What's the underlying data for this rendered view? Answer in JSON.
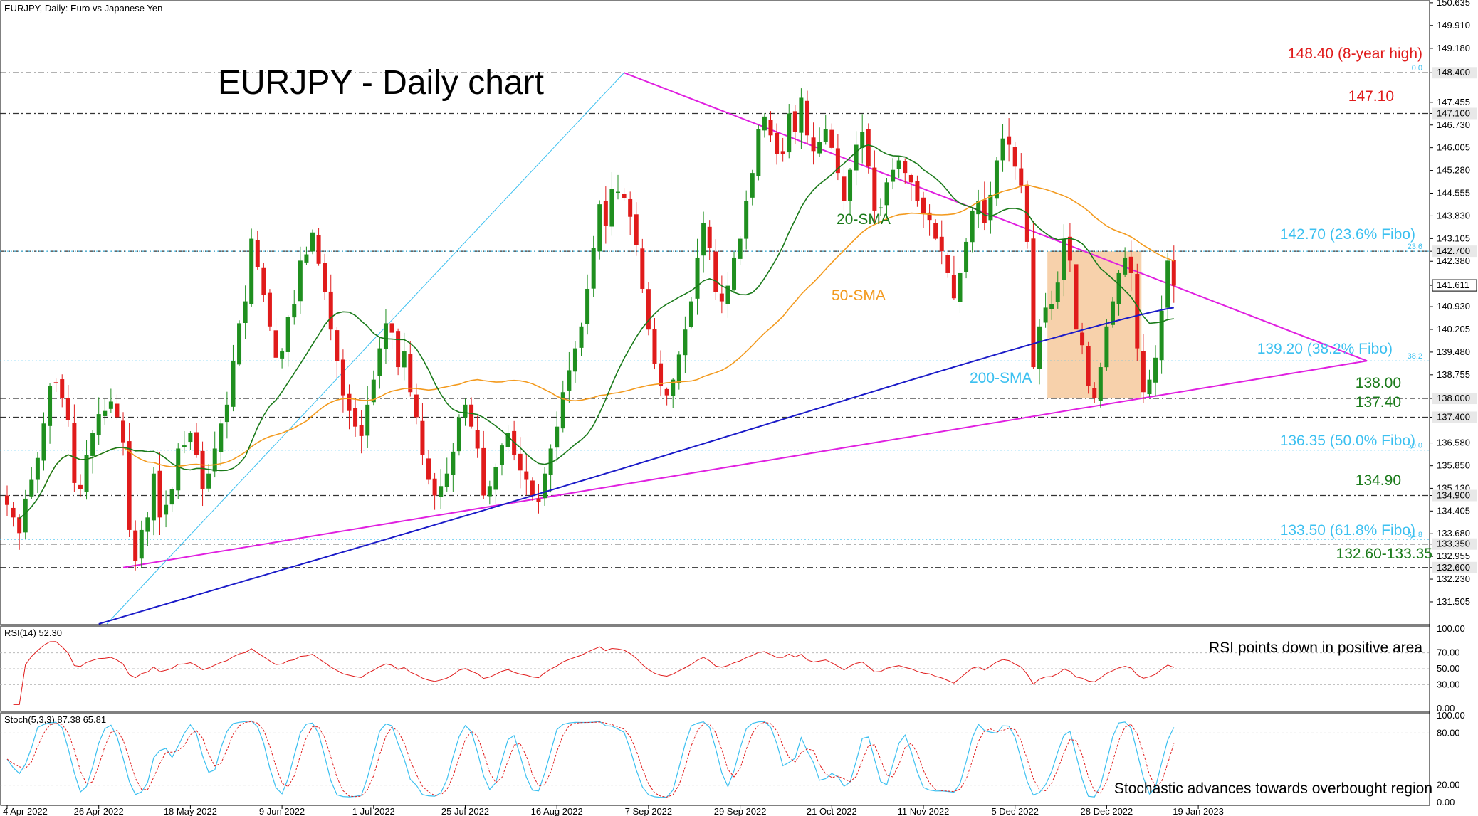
{
  "header": {
    "symbol_label": "EURJPY, Daily:  Euro vs Japanese Yen",
    "title": "EURJPY - Daily chart"
  },
  "colors": {
    "bull": "#1f8f1f",
    "bear": "#e01b1b",
    "sma20": "#1a7a1a",
    "sma50": "#f39a1e",
    "sma200": "#1a1ac8",
    "trendline": "#e020e0",
    "fibo": "#3cc0f0",
    "level": "#333333",
    "zone_fill": "#f6c99c",
    "rsi": "#e01b1b",
    "stoch_main": "#3cc0f0",
    "stoch_signal": "#e01b1b",
    "label_red": "#e01b1b",
    "label_blue": "#3cc0f0",
    "label_green": "#1a7a1a"
  },
  "chart_data": [
    {
      "type": "candlestick",
      "panel": "price",
      "ylim": [
        130.8,
        150.7
      ],
      "y_ticks": [
        "150.635",
        "149.910",
        "149.180",
        "148.400",
        "147.455",
        "147.100",
        "146.730",
        "146.005",
        "145.280",
        "144.555",
        "143.830",
        "143.105",
        "142.700",
        "142.380",
        "141.611",
        "140.930",
        "140.205",
        "139.480",
        "138.755",
        "138.000",
        "137.400",
        "136.580",
        "135.850",
        "135.130",
        "134.900",
        "134.405",
        "133.680",
        "133.350",
        "132.955",
        "132.600",
        "132.230",
        "131.505"
      ],
      "highlighted_ticks": [
        "148.400",
        "147.100",
        "142.700",
        "141.611",
        "138.000",
        "137.400",
        "134.900",
        "133.350",
        "132.600"
      ],
      "x_ticks": [
        "4 Apr 2022",
        "26 Apr 2022",
        "18 May 2022",
        "9 Jun 2022",
        "1 Jul 2022",
        "25 Jul 2022",
        "16 Aug 2022",
        "7 Sep 2022",
        "29 Sep 2022",
        "21 Oct 2022",
        "11 Nov 2022",
        "5 Dec 2022",
        "28 Dec 2022",
        "19 Jan 2023"
      ],
      "closes": [
        134.6,
        134.2,
        133.7,
        134.8,
        135.4,
        136.1,
        137.2,
        138.4,
        138.5,
        138.0,
        137.3,
        135.3,
        135.1,
        136.2,
        136.9,
        137.5,
        137.6,
        137.9,
        137.4,
        136.6,
        133.8,
        132.8,
        133.8,
        134.2,
        135.6,
        134.2,
        134.6,
        135.1,
        136.4,
        136.5,
        136.9,
        136.2,
        135.1,
        135.6,
        136.4,
        137.2,
        137.8,
        139.2,
        140.4,
        141.1,
        143.1,
        142.2,
        141.3,
        140.3,
        139.3,
        139.5,
        140.6,
        141.0,
        142.4,
        142.6,
        143.3,
        142.3,
        141.4,
        140.2,
        139.2,
        138.1,
        137.6,
        137.1,
        136.8,
        137.8,
        138.6,
        139.6,
        140.4,
        140.1,
        139.0,
        139.5,
        138.2,
        137.4,
        136.2,
        135.4,
        134.9,
        135.2,
        135.6,
        136.3,
        137.4,
        137.8,
        137.1,
        136.4,
        134.9,
        135.2,
        135.8,
        136.5,
        136.9,
        136.2,
        135.7,
        135.4,
        134.9,
        134.7,
        135.6,
        136.4,
        137.1,
        138.2,
        138.9,
        139.6,
        140.3,
        141.5,
        142.8,
        144.2,
        143.5,
        144.7,
        144.6,
        144.4,
        143.8,
        142.9,
        141.5,
        140.2,
        139.1,
        138.4,
        138.1,
        138.6,
        139.4,
        140.2,
        141.1,
        142.5,
        143.6,
        142.8,
        141.4,
        141.1,
        141.6,
        142.5,
        143.1,
        144.3,
        145.2,
        146.6,
        147.0,
        146.4,
        145.8,
        145.8,
        147.1,
        146.5,
        147.6,
        146.4,
        145.9,
        146.2,
        146.6,
        146.0,
        145.2,
        144.3,
        145.3,
        146.1,
        146.5,
        145.4,
        144.0,
        144.1,
        144.9,
        145.3,
        145.6,
        145.2,
        144.9,
        144.3,
        143.9,
        143.7,
        143.1,
        142.7,
        142.0,
        141.2,
        142.0,
        143.0,
        144.0,
        144.3,
        143.6,
        144.5,
        145.6,
        146.3,
        146.1,
        145.4,
        144.8,
        143.0,
        139.0,
        140.3,
        140.9,
        141.0,
        141.7,
        143.1,
        142.4,
        140.2,
        139.7,
        138.4,
        138.0,
        139.0,
        140.3,
        141.1,
        142.0,
        142.5,
        142.0,
        139.6,
        138.2,
        138.6,
        139.3,
        140.8,
        142.4,
        141.6
      ],
      "annotations": [
        {
          "text": "148.40 (8-year high)",
          "color": "red"
        },
        {
          "text": "147.10",
          "color": "red"
        },
        {
          "text": "142.70 (23.6% Fibo)",
          "color": "blue"
        },
        {
          "text": "139.20 (38.2% Fibo)",
          "color": "blue"
        },
        {
          "text": "138.00",
          "color": "green"
        },
        {
          "text": "137.40",
          "color": "green"
        },
        {
          "text": "136.35 (50.0% Fibo)",
          "color": "blue"
        },
        {
          "text": "134.90",
          "color": "green"
        },
        {
          "text": "133.50 (61.8% Fibo)",
          "color": "blue"
        },
        {
          "text": "132.60-133.35",
          "color": "green"
        },
        {
          "text": "20-SMA",
          "color": "green"
        },
        {
          "text": "50-SMA",
          "color": "orange"
        },
        {
          "text": "200-SMA",
          "color": "blue"
        }
      ],
      "fibo_level_tags": [
        "0.0",
        "23.6",
        "38.2",
        "50.0",
        "61.8"
      ],
      "levels": [
        148.4,
        147.1,
        142.7,
        138.0,
        137.4,
        134.9,
        133.35,
        132.6
      ],
      "fibo_levels": [
        142.7,
        139.2,
        136.35,
        133.5
      ],
      "current_price": "141.611"
    },
    {
      "type": "line",
      "panel": "rsi",
      "header": "RSI(14) 52.30",
      "ylim": [
        0,
        100
      ],
      "y_ticks": [
        "100.00",
        "70.00",
        "50.00",
        "30.00",
        "0.00"
      ],
      "annotation": "RSI points down in positive area"
    },
    {
      "type": "line",
      "panel": "stochastic",
      "header": "Stoch(5,3,3) 87.38 65.81",
      "ylim": [
        0,
        100
      ],
      "y_ticks": [
        "100.00",
        "80.00",
        "20.00",
        "0.00"
      ],
      "annotation": "Stochastic advances towards overbought region"
    }
  ]
}
